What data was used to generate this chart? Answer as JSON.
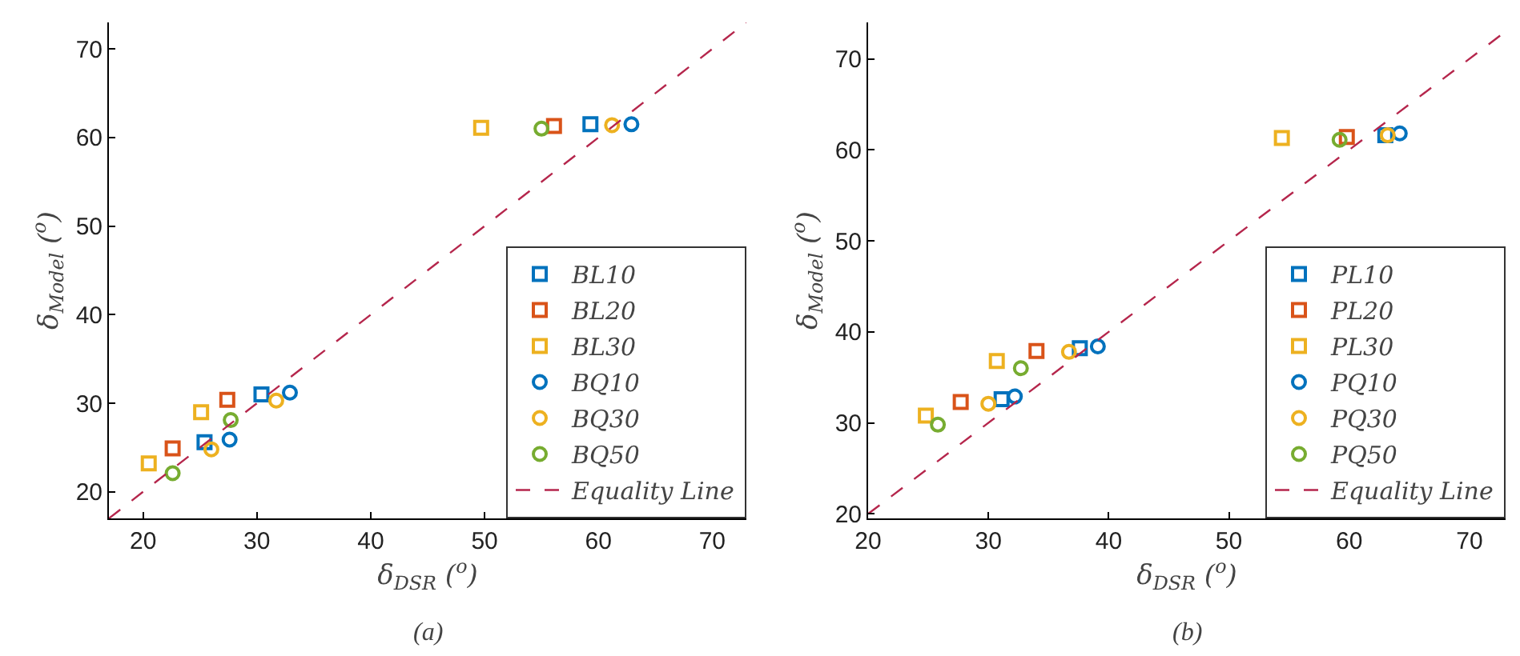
{
  "chart_data": [
    {
      "type": "scatter",
      "xlabel": "δ$_{DSR}$ ($^{o}$)",
      "ylabel": "δ$_{Model}$ ($^{o}$)",
      "annotations": [
        "(a)"
      ],
      "xlim": [
        17,
        73
      ],
      "ylim": [
        17,
        73
      ],
      "xticks": [
        20,
        30,
        40,
        50,
        60,
        70
      ],
      "yticks": [
        20,
        30,
        40,
        50,
        60,
        70
      ],
      "grid": false,
      "legend": "bottom right",
      "series": [
        {
          "name": "BL10",
          "color": "#0072bd",
          "marker": "square",
          "x": [
            25.4,
            30.4,
            59.3
          ],
          "values": [
            25.6,
            31.0,
            61.5
          ]
        },
        {
          "name": "BL20",
          "color": "#d95319",
          "marker": "square",
          "x": [
            22.6,
            27.4,
            56.1
          ],
          "values": [
            24.9,
            30.4,
            61.3
          ]
        },
        {
          "name": "BL30",
          "color": "#edb120",
          "marker": "square",
          "x": [
            20.5,
            25.1,
            49.7
          ],
          "values": [
            23.2,
            29.0,
            61.1
          ]
        },
        {
          "name": "BQ10",
          "color": "#0072bd",
          "marker": "circle",
          "x": [
            27.6,
            32.9,
            62.9
          ],
          "values": [
            25.9,
            31.2,
            61.5
          ]
        },
        {
          "name": "BQ30",
          "color": "#edb120",
          "marker": "circle",
          "x": [
            26.0,
            31.7,
            61.2
          ],
          "values": [
            24.8,
            30.3,
            61.4
          ]
        },
        {
          "name": "BQ50",
          "color": "#77ac30",
          "marker": "circle",
          "x": [
            22.6,
            27.7,
            55.0
          ],
          "values": [
            22.1,
            28.1,
            61.0
          ]
        },
        {
          "name": "Equality Line",
          "type": "line",
          "color": "#b5264c",
          "marker": "none",
          "line_style": "dashed",
          "x": [
            17,
            73
          ],
          "values": [
            17,
            73
          ]
        }
      ]
    },
    {
      "type": "scatter",
      "xlabel": "δ$_{DSR}$ ($^{o}$)",
      "ylabel": "δ$_{Model}$ ($^{o}$)",
      "annotations": [
        "(b)"
      ],
      "xlim": [
        20,
        73
      ],
      "ylim": [
        19.5,
        74
      ],
      "xticks": [
        20,
        30,
        40,
        50,
        60,
        70
      ],
      "yticks": [
        20,
        30,
        40,
        50,
        60,
        70
      ],
      "grid": false,
      "legend": "bottom right",
      "series": [
        {
          "name": "PL10",
          "color": "#0072bd",
          "marker": "square",
          "x": [
            31.1,
            37.6,
            63.0
          ],
          "values": [
            32.6,
            38.2,
            61.6
          ]
        },
        {
          "name": "PL20",
          "color": "#d95319",
          "marker": "square",
          "x": [
            27.7,
            34.0,
            59.8
          ],
          "values": [
            32.3,
            37.9,
            61.4
          ]
        },
        {
          "name": "PL30",
          "color": "#edb120",
          "marker": "square",
          "x": [
            24.8,
            30.7,
            54.4
          ],
          "values": [
            30.8,
            36.8,
            61.3
          ]
        },
        {
          "name": "PQ10",
          "color": "#0072bd",
          "marker": "circle",
          "x": [
            32.2,
            39.1,
            64.2
          ],
          "values": [
            32.9,
            38.4,
            61.8
          ]
        },
        {
          "name": "PQ30",
          "color": "#edb120",
          "marker": "circle",
          "x": [
            30.0,
            36.7,
            63.2
          ],
          "values": [
            32.1,
            37.8,
            61.6
          ]
        },
        {
          "name": "PQ50",
          "color": "#77ac30",
          "marker": "circle",
          "x": [
            25.8,
            32.7,
            59.2
          ],
          "values": [
            29.8,
            36.0,
            61.1
          ]
        },
        {
          "name": "Equality Line",
          "type": "line",
          "color": "#b5264c",
          "marker": "none",
          "line_style": "dashed",
          "x": [
            20,
            73
          ],
          "values": [
            20,
            73
          ]
        }
      ]
    }
  ]
}
